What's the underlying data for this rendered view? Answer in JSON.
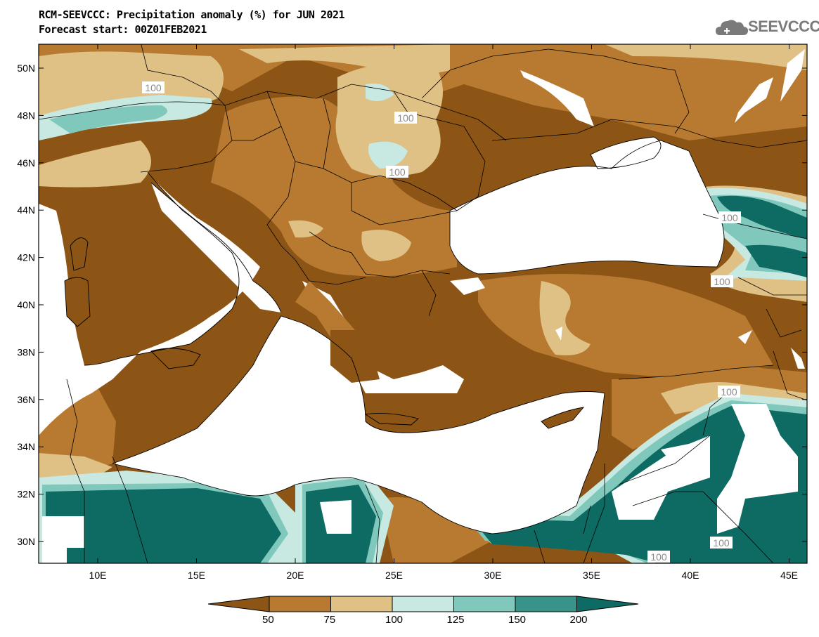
{
  "header": {
    "title": "RCM-SEEVCCC: Precipitation anomaly (%) for JUN 2021",
    "subtitle": "Forecast start: 00Z01FEB2021",
    "logo_text": "SEEVCCC"
  },
  "map": {
    "lat_labels": [
      "50N",
      "48N",
      "46N",
      "44N",
      "42N",
      "40N",
      "38N",
      "36N",
      "34N",
      "32N",
      "30N"
    ],
    "lon_labels": [
      "10E",
      "15E",
      "20E",
      "25E",
      "30E",
      "35E",
      "40E",
      "45E"
    ],
    "contour_labels": [
      "100",
      "100",
      "100",
      "100",
      "100",
      "100",
      "100",
      "100"
    ]
  },
  "colorbar": {
    "labels": [
      "50",
      "75",
      "100",
      "125",
      "150",
      "200"
    ],
    "colors": [
      "#8c5515",
      "#b77a30",
      "#dfc085",
      "#c7e9e2",
      "#7fc8bb",
      "#389488",
      "#0d6b63"
    ]
  }
}
